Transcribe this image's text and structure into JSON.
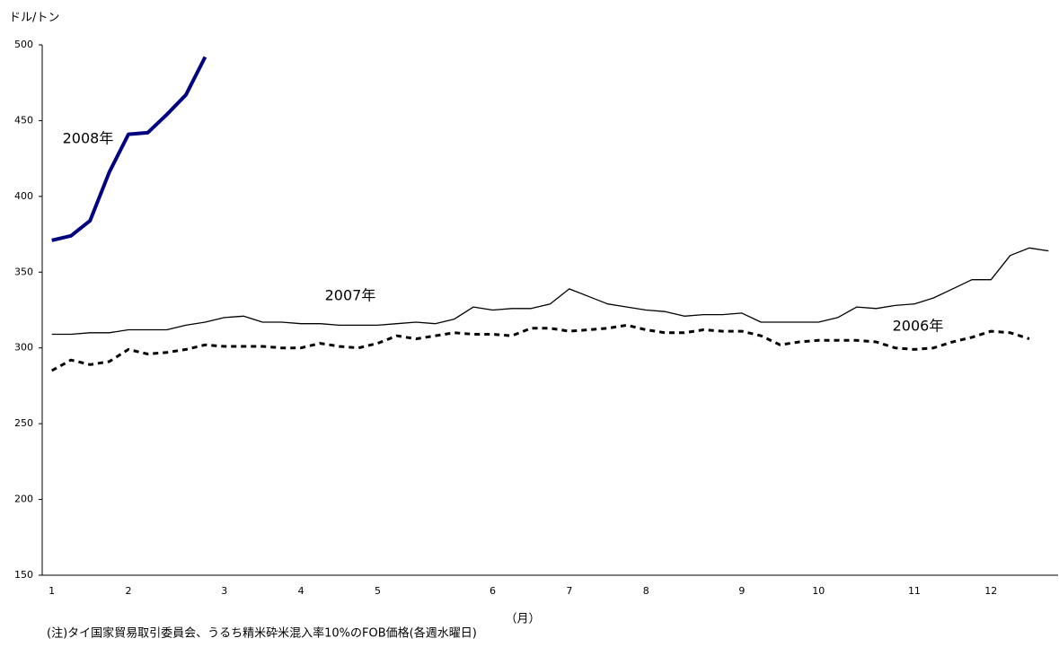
{
  "chart_data": {
    "type": "line",
    "y_label": "ドル/トン",
    "x_label": "（月）",
    "note": "(注)タイ国家貿易取引委員会、うるち精米砕米混入率10%のFOB価格(各週水曜日)",
    "categories": [
      "1",
      null,
      null,
      null,
      "2",
      null,
      null,
      null,
      null,
      "3",
      null,
      null,
      null,
      "4",
      null,
      null,
      null,
      "5",
      null,
      null,
      null,
      null,
      null,
      "6",
      null,
      null,
      null,
      "7",
      null,
      null,
      null,
      "8",
      null,
      null,
      null,
      null,
      "9",
      null,
      null,
      null,
      "10",
      null,
      null,
      null,
      null,
      "11",
      null,
      null,
      null,
      "12",
      null,
      null,
      null
    ],
    "ylim": [
      150,
      500
    ],
    "yticks": [
      150,
      200,
      250,
      300,
      350,
      400,
      450,
      500
    ],
    "grid": false,
    "series": [
      {
        "name": "2008年",
        "color": "#000080",
        "width": 4,
        "dashed": false,
        "values": [
          371,
          374,
          384,
          416,
          441,
          442,
          454,
          467,
          492,
          null,
          null,
          null,
          null,
          null,
          null,
          null,
          null,
          null,
          null,
          null,
          null,
          null,
          null,
          null,
          null,
          null,
          null,
          null,
          null,
          null,
          null,
          null,
          null,
          null,
          null,
          null,
          null,
          null,
          null,
          null,
          null,
          null,
          null,
          null,
          null,
          null,
          null,
          null,
          null,
          null,
          null,
          null,
          null
        ]
      },
      {
        "name": "2007年",
        "color": "#000000",
        "width": 1.3,
        "dashed": false,
        "values": [
          309,
          309,
          310,
          310,
          312,
          312,
          312,
          315,
          317,
          320,
          321,
          317,
          317,
          316,
          316,
          315,
          315,
          315,
          316,
          317,
          316,
          319,
          327,
          325,
          326,
          326,
          329,
          339,
          334,
          329,
          327,
          325,
          324,
          321,
          322,
          322,
          323,
          317,
          317,
          317,
          317,
          320,
          327,
          326,
          328,
          329,
          333,
          339,
          345,
          345,
          361,
          366,
          364
        ]
      },
      {
        "name": "2006年",
        "color": "#000000",
        "width": 3,
        "dashed": true,
        "values": [
          285,
          292,
          289,
          291,
          299,
          296,
          297,
          299,
          302,
          301,
          301,
          301,
          300,
          300,
          303,
          301,
          300,
          303,
          308,
          306,
          308,
          310,
          309,
          309,
          308,
          313,
          313,
          311,
          312,
          313,
          315,
          312,
          310,
          310,
          312,
          311,
          311,
          308,
          302,
          304,
          305,
          305,
          305,
          304,
          300,
          299,
          300,
          304,
          307,
          311,
          310,
          306,
          null
        ]
      }
    ]
  }
}
